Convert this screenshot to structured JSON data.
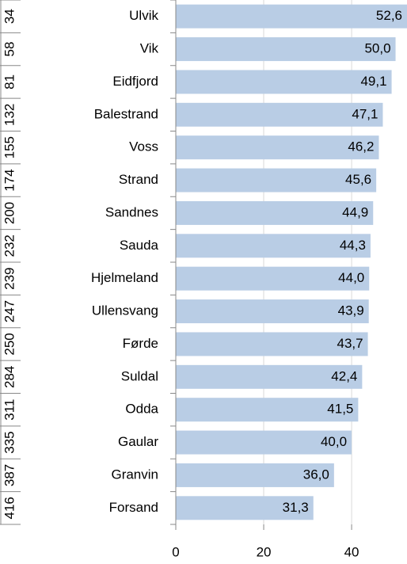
{
  "chart_data": {
    "type": "bar",
    "orientation": "horizontal",
    "ranks": [
      "34",
      "58",
      "81",
      "132",
      "155",
      "174",
      "200",
      "232",
      "239",
      "247",
      "250",
      "284",
      "311",
      "335",
      "387",
      "416"
    ],
    "categories": [
      "Ulvik",
      "Vik",
      "Eidfjord",
      "Balestrand",
      "Voss",
      "Strand",
      "Sandnes",
      "Sauda",
      "Hjelmeland",
      "Ullensvang",
      "Førde",
      "Suldal",
      "Odda",
      "Gaular",
      "Granvin",
      "Forsand"
    ],
    "values": [
      52.6,
      50.0,
      49.1,
      47.1,
      46.2,
      45.6,
      44.9,
      44.3,
      44.0,
      43.9,
      43.7,
      42.4,
      41.5,
      40.0,
      36.0,
      31.3
    ],
    "value_labels": [
      "52,6",
      "50,0",
      "49,1",
      "47,1",
      "46,2",
      "45,6",
      "44,9",
      "44,3",
      "44,0",
      "43,9",
      "43,7",
      "42,4",
      "41,5",
      "40,0",
      "36,0",
      "31,3"
    ],
    "color": "#b9cde5",
    "xlim": [
      0,
      52.6
    ],
    "xticks": [
      0,
      20,
      40
    ],
    "grid": true
  }
}
